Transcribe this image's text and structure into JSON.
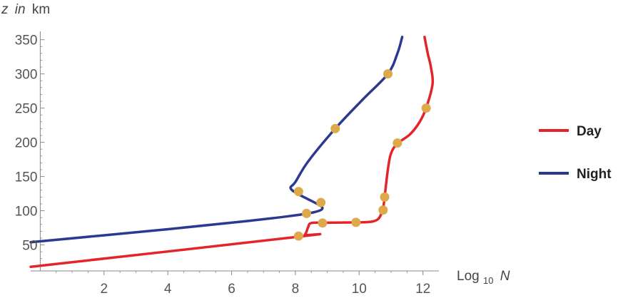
{
  "chart_data": {
    "type": "line",
    "xlabel": {
      "prefix": "Log",
      "sub": "10",
      "var": "N"
    },
    "ylabel": {
      "var": "z",
      "mid": "in",
      "unit": "km"
    },
    "xlim": [
      -0.3,
      12.5
    ],
    "ylim": [
      12,
      358
    ],
    "xticks": [
      "2",
      "4",
      "6",
      "8",
      "10",
      "12"
    ],
    "xtick_values": [
      2,
      4,
      6,
      8,
      10,
      12
    ],
    "yticks": [
      "50",
      "100",
      "150",
      "200",
      "250",
      "300",
      "350"
    ],
    "ytick_values": [
      50,
      100,
      150,
      200,
      250,
      300,
      350
    ],
    "grid": false,
    "legend_position": "right",
    "colors": {
      "day": "#e3242b",
      "night": "#2b3990",
      "marker": "#dda94a",
      "axis": "#888888"
    },
    "series": [
      {
        "name": "Day",
        "key": "day",
        "points": [
          [
            -0.3,
            18
          ],
          [
            8.1,
            62
          ],
          [
            8.3,
            65
          ],
          [
            8.4,
            76
          ],
          [
            8.5,
            82
          ],
          [
            9.0,
            82.5
          ],
          [
            10.0,
            83
          ],
          [
            10.4,
            84
          ],
          [
            10.6,
            88
          ],
          [
            10.7,
            96
          ],
          [
            10.75,
            102
          ],
          [
            10.8,
            120
          ],
          [
            10.9,
            160
          ],
          [
            11.0,
            184
          ],
          [
            11.2,
            198
          ],
          [
            11.6,
            212
          ],
          [
            11.9,
            230
          ],
          [
            12.1,
            250
          ],
          [
            12.3,
            285
          ],
          [
            12.25,
            310
          ],
          [
            12.15,
            330
          ],
          [
            12.05,
            354
          ]
        ],
        "markers": [
          [
            8.1,
            63
          ],
          [
            8.85,
            82
          ],
          [
            9.9,
            83
          ],
          [
            10.75,
            101
          ],
          [
            10.8,
            120
          ],
          [
            11.2,
            199
          ],
          [
            12.1,
            250
          ]
        ]
      },
      {
        "name": "Night",
        "key": "night",
        "points": [
          [
            -0.3,
            54
          ],
          [
            4.0,
            73
          ],
          [
            6.5,
            85
          ],
          [
            7.8,
            92
          ],
          [
            8.6,
            98
          ],
          [
            8.85,
            104
          ],
          [
            8.6,
            112
          ],
          [
            8.1,
            124
          ],
          [
            7.85,
            133
          ],
          [
            8.0,
            142
          ],
          [
            8.4,
            172
          ],
          [
            9.25,
            220
          ],
          [
            10.1,
            262
          ],
          [
            10.9,
            300
          ],
          [
            11.2,
            330
          ],
          [
            11.35,
            354
          ]
        ],
        "markers": [
          [
            8.1,
            128
          ],
          [
            8.8,
            112
          ],
          [
            8.35,
            96
          ],
          [
            9.25,
            220
          ],
          [
            10.9,
            300
          ]
        ]
      }
    ]
  }
}
